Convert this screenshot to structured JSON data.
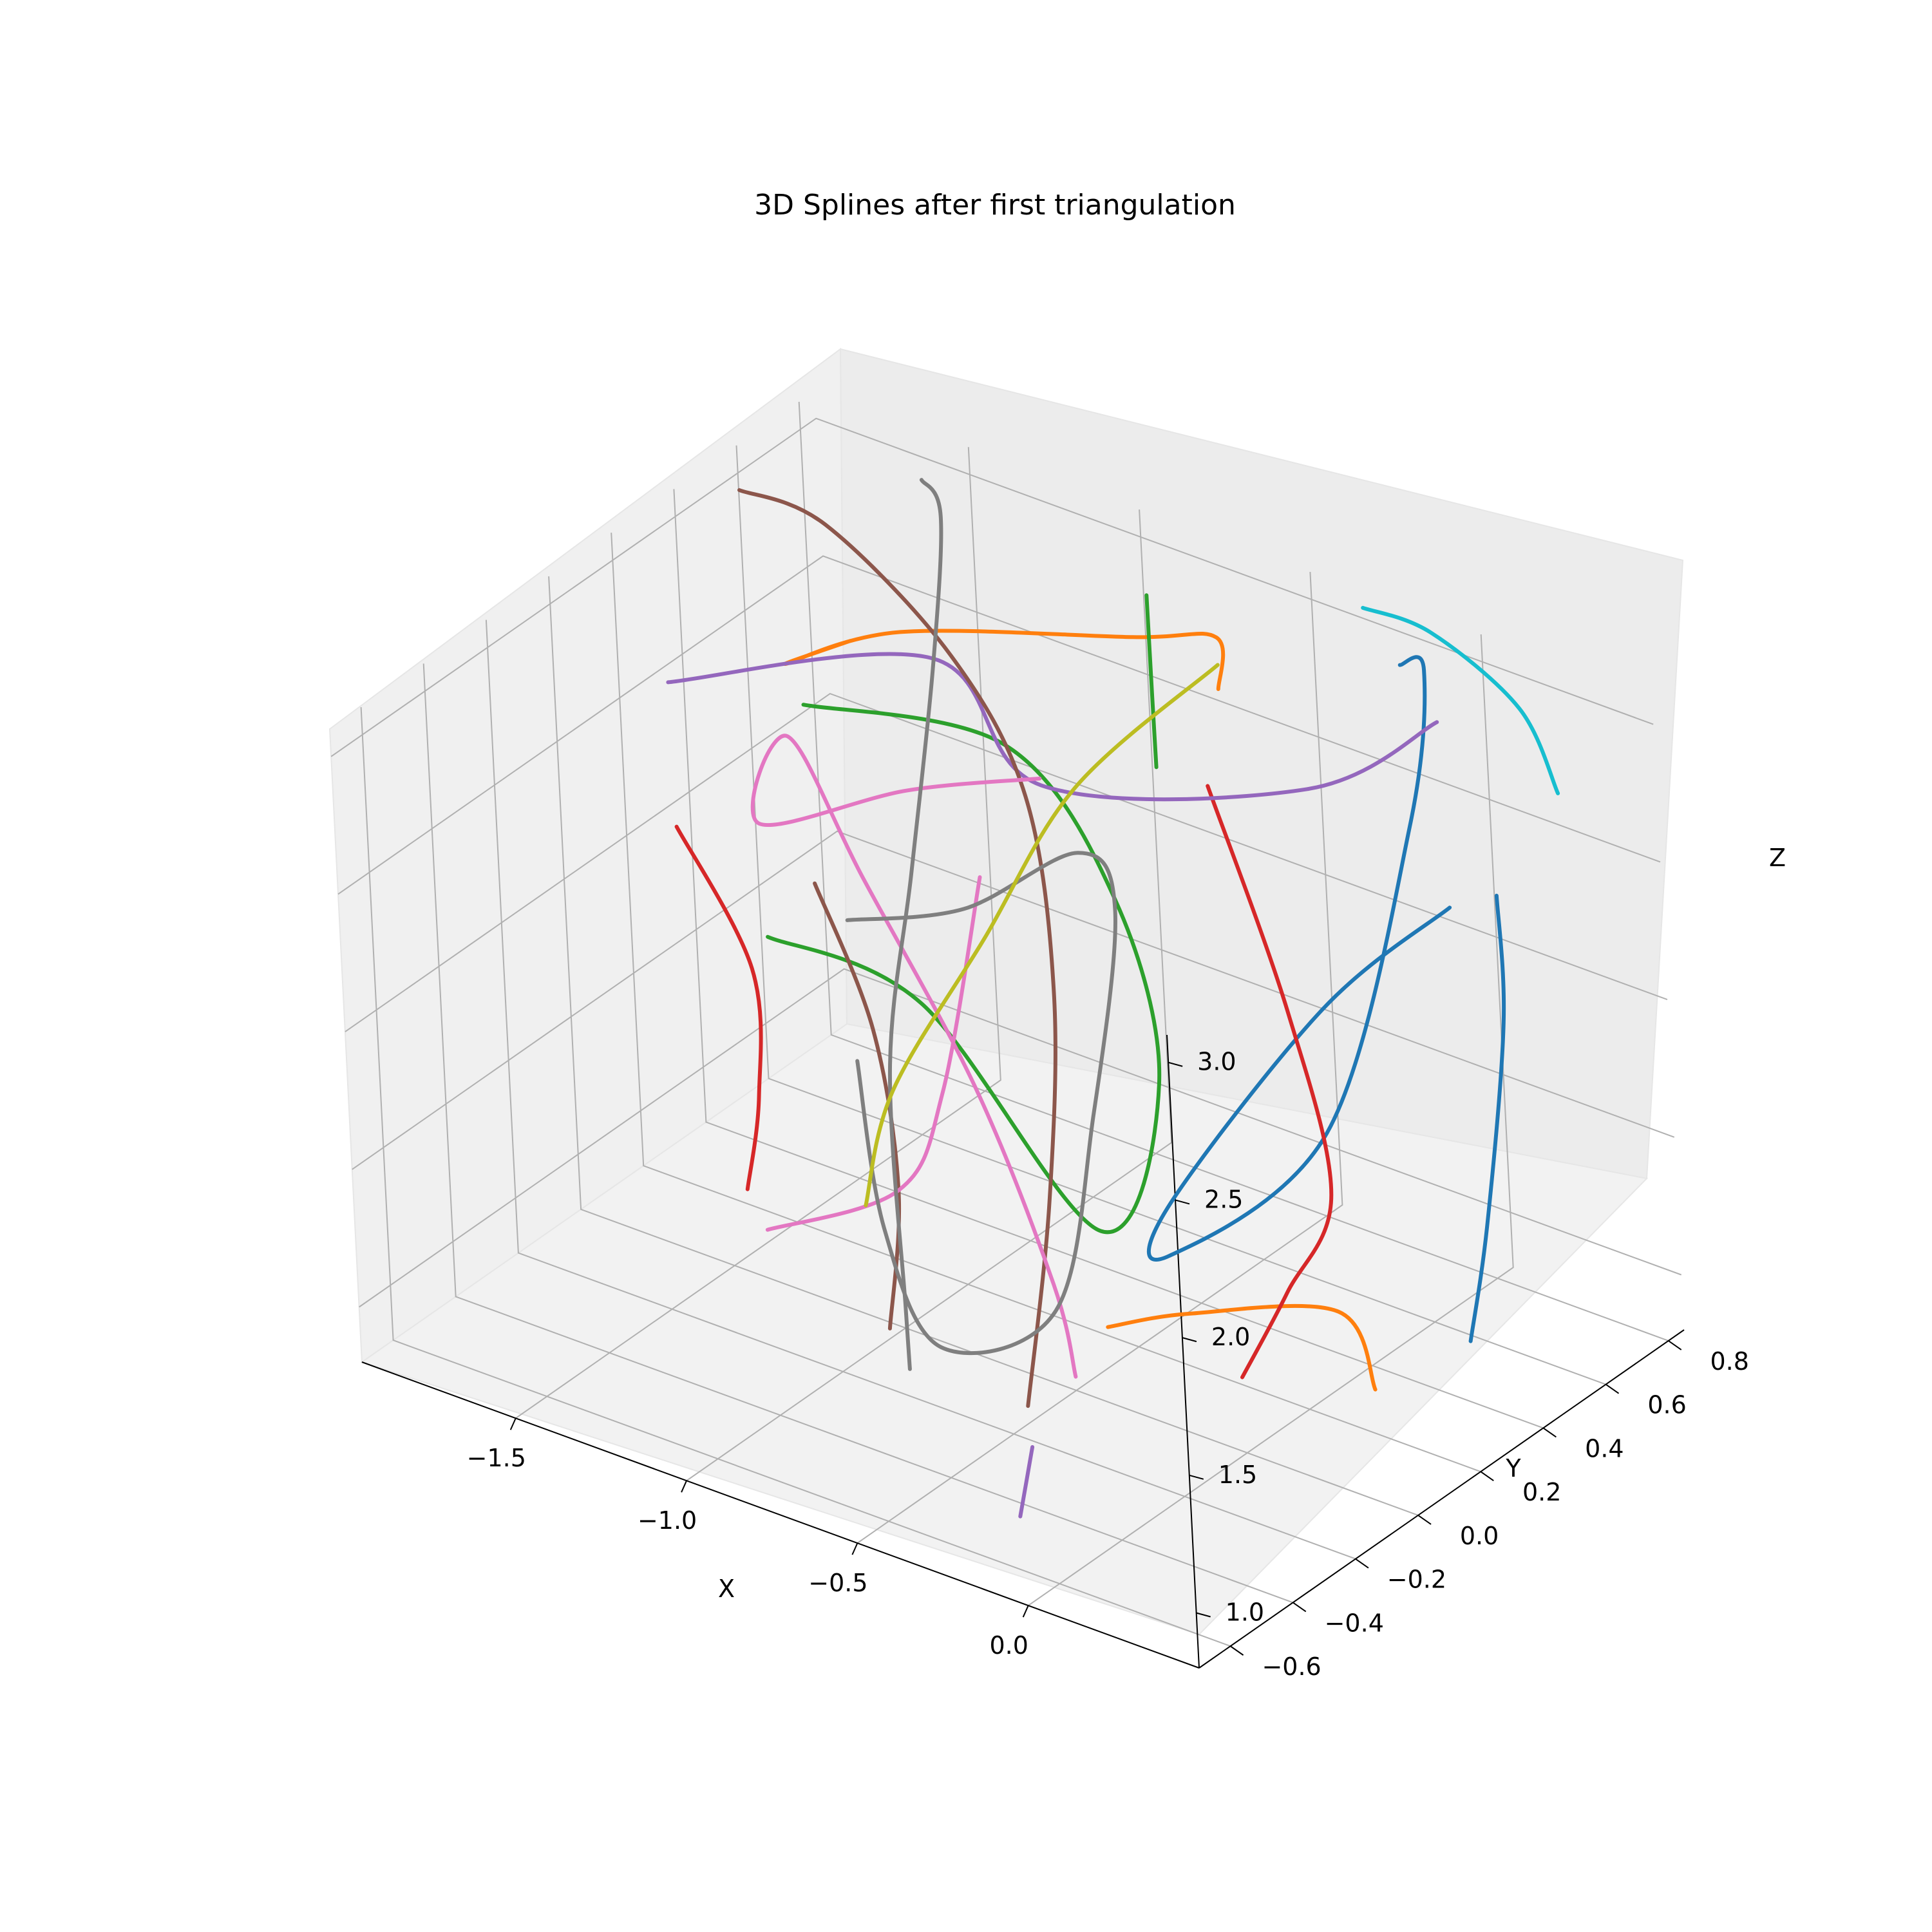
{
  "chart_data": {
    "type": "line",
    "title": "3D Splines after first triangulation",
    "xlabel": "X",
    "ylabel": "Y",
    "zlabel": "Z",
    "x_ticks": [
      "−1.5",
      "−1.0",
      "−0.5",
      "0.0"
    ],
    "y_ticks": [
      "−0.6",
      "−0.4",
      "−0.2",
      "0.0",
      "0.2",
      "0.4",
      "0.6",
      "0.8"
    ],
    "z_ticks": [
      "1.0",
      "1.5",
      "2.0",
      "2.5",
      "3.0"
    ],
    "xlim": [
      -1.95,
      0.5
    ],
    "ylim": [
      -0.7,
      0.85
    ],
    "zlim": [
      0.8,
      3.1
    ],
    "grid": true,
    "series": [
      {
        "color": "#1f77b4",
        "points": [
          [
            -0.15,
            0.75,
            3.0
          ],
          [
            -0.05,
            0.72,
            3.05
          ],
          [
            0.0,
            0.6,
            2.6
          ],
          [
            -0.1,
            0.4,
            1.6
          ],
          [
            -0.3,
            0.1,
            1.3
          ],
          [
            -0.2,
            0.0,
            1.6
          ],
          [
            0.1,
            0.2,
            2.3
          ],
          [
            0.3,
            0.4,
            2.6
          ]
        ]
      },
      {
        "color": "#1f77b4",
        "points": [
          [
            0.2,
            0.65,
            2.4
          ],
          [
            0.25,
            0.6,
            2.0
          ],
          [
            0.22,
            0.55,
            1.3
          ],
          [
            0.2,
            0.5,
            0.9
          ]
        ]
      },
      {
        "color": "#ff7f0e",
        "points": [
          [
            -1.35,
            0.3,
            2.9
          ],
          [
            -1.45,
            0.2,
            2.85
          ],
          [
            -1.2,
            0.3,
            3.0
          ],
          [
            -0.7,
            0.5,
            3.05
          ],
          [
            -0.5,
            0.55,
            3.1
          ],
          [
            -0.55,
            0.6,
            2.85
          ]
        ]
      },
      {
        "color": "#ff7f0e",
        "points": [
          [
            -0.3,
            -0.1,
            1.2
          ],
          [
            -0.1,
            -0.05,
            1.3
          ],
          [
            0.1,
            0.2,
            1.2
          ],
          [
            0.15,
            0.25,
            0.9
          ]
        ]
      },
      {
        "color": "#2ca02c",
        "points": [
          [
            -0.75,
            0.6,
            3.1
          ],
          [
            -0.7,
            0.55,
            2.8
          ],
          [
            -0.65,
            0.5,
            2.6
          ]
        ]
      },
      {
        "color": "#2ca02c",
        "points": [
          [
            -1.5,
            0.3,
            2.6
          ],
          [
            -1.0,
            0.4,
            2.6
          ],
          [
            -0.6,
            0.3,
            2.3
          ],
          [
            -0.4,
            0.2,
            1.8
          ],
          [
            -0.5,
            0.1,
            1.3
          ],
          [
            -1.0,
            0.1,
            1.9
          ],
          [
            -1.4,
            0.05,
            2.0
          ]
        ]
      },
      {
        "color": "#d62728",
        "points": [
          [
            -1.8,
            0.2,
            2.1
          ],
          [
            -1.5,
            0.1,
            1.8
          ],
          [
            -1.45,
            0.05,
            1.4
          ],
          [
            -1.45,
            0.0,
            1.1
          ]
        ]
      },
      {
        "color": "#d62728",
        "points": [
          [
            -0.5,
            0.5,
            2.6
          ],
          [
            -0.2,
            0.4,
            2.0
          ],
          [
            0.0,
            0.3,
            1.5
          ],
          [
            -0.05,
            0.2,
            1.2
          ],
          [
            -0.1,
            0.1,
            0.95
          ]
        ]
      },
      {
        "color": "#9467bd",
        "points": [
          [
            -1.9,
            0.3,
            2.5
          ],
          [
            -1.3,
            0.5,
            2.7
          ],
          [
            -0.9,
            0.4,
            2.5
          ],
          [
            -0.3,
            0.6,
            2.6
          ],
          [
            0.0,
            0.7,
            2.9
          ]
        ]
      },
      {
        "color": "#9467bd",
        "points": [
          [
            -0.35,
            -0.3,
            0.9
          ],
          [
            -0.3,
            -0.4,
            0.75
          ]
        ]
      },
      {
        "color": "#8c564b",
        "points": [
          [
            -1.9,
            0.55,
            3.0
          ],
          [
            -1.6,
            0.5,
            3.05
          ],
          [
            -1.2,
            0.45,
            2.8
          ],
          [
            -0.9,
            0.35,
            2.5
          ],
          [
            -0.7,
            0.2,
            2.0
          ],
          [
            -0.6,
            0.05,
            1.4
          ],
          [
            -0.55,
            -0.1,
            0.8
          ]
        ]
      },
      {
        "color": "#8c564b",
        "points": [
          [
            -1.3,
            0.1,
            2.2
          ],
          [
            -1.1,
            0.05,
            1.8
          ],
          [
            -1.0,
            0.0,
            1.3
          ],
          [
            -0.95,
            -0.1,
            0.9
          ]
        ]
      },
      {
        "color": "#e377c2",
        "points": [
          [
            -1.0,
            0.5,
            2.4
          ],
          [
            -1.3,
            0.4,
            2.3
          ],
          [
            -1.65,
            0.3,
            2.1
          ],
          [
            -1.6,
            0.35,
            2.4
          ],
          [
            -1.3,
            0.25,
            2.1
          ],
          [
            -0.9,
            0.15,
            1.6
          ],
          [
            -0.6,
            0.05,
            1.1
          ],
          [
            -0.5,
            0.0,
            0.85
          ]
        ]
      },
      {
        "color": "#e377c2",
        "points": [
          [
            -1.3,
            -0.1,
            1.1
          ],
          [
            -1.0,
            0.0,
            1.3
          ],
          [
            -0.95,
            0.1,
            1.6
          ],
          [
            -1.0,
            0.3,
            2.2
          ]
        ]
      },
      {
        "color": "#7f7f7f",
        "points": [
          [
            -1.5,
            0.7,
            3.1
          ],
          [
            -1.4,
            0.65,
            3.05
          ],
          [
            -1.35,
            0.55,
            2.6
          ],
          [
            -1.3,
            0.4,
            2.0
          ],
          [
            -1.2,
            0.2,
            1.5
          ],
          [
            -0.9,
            -0.1,
            1.0
          ],
          [
            -0.8,
            -0.2,
            0.9
          ]
        ]
      },
      {
        "color": "#7f7f7f",
        "points": [
          [
            -1.45,
            0.35,
            1.8
          ],
          [
            -1.1,
            0.35,
            2.0
          ],
          [
            -0.8,
            0.4,
            2.3
          ],
          [
            -0.65,
            0.35,
            2.2
          ],
          [
            -0.6,
            0.2,
            1.6
          ],
          [
            -0.6,
            0.05,
            1.0
          ],
          [
            -0.8,
            -0.1,
            0.9
          ],
          [
            -1.0,
            -0.05,
            1.2
          ],
          [
            -1.2,
            0.1,
            1.6
          ]
        ]
      },
      {
        "color": "#bcbd22",
        "points": [
          [
            -1.1,
            0.0,
            1.2
          ],
          [
            -1.05,
            0.05,
            1.6
          ],
          [
            -0.9,
            0.2,
            2.1
          ],
          [
            -0.75,
            0.35,
            2.6
          ],
          [
            -0.5,
            0.55,
            3.0
          ]
        ]
      },
      {
        "color": "#17becf",
        "points": [
          [
            -0.3,
            0.8,
            3.1
          ],
          [
            -0.1,
            0.8,
            3.1
          ],
          [
            0.2,
            0.75,
            3.0
          ],
          [
            0.35,
            0.7,
            2.8
          ]
        ]
      }
    ]
  }
}
